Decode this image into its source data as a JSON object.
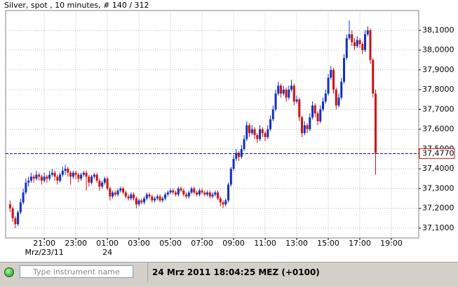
{
  "chart_data": {
    "type": "candlestick",
    "title": "Silver, spot , 10 minutes, # 140 / 312",
    "up_color": "#1030c0",
    "down_color": "#d01010",
    "grid": true,
    "xlim": [
      1113,
      2684
    ],
    "ylim": [
      37.05,
      38.2
    ],
    "xticks": [
      {
        "value": 1260,
        "label": "21:00"
      },
      {
        "value": 1380,
        "label": "23:00"
      },
      {
        "value": 1500,
        "label": "01:00"
      },
      {
        "value": 1620,
        "label": "03:00"
      },
      {
        "value": 1740,
        "label": "05:00"
      },
      {
        "value": 1860,
        "label": "07:00"
      },
      {
        "value": 1980,
        "label": "09:00"
      },
      {
        "value": 2100,
        "label": "11:00"
      },
      {
        "value": 2220,
        "label": "13:00"
      },
      {
        "value": 2340,
        "label": "15:00"
      },
      {
        "value": 2460,
        "label": "17:00"
      },
      {
        "value": 2580,
        "label": "19:00"
      }
    ],
    "date_labels": [
      {
        "value": 1260,
        "label": "Mrz/23/11"
      },
      {
        "value": 1500,
        "label": "24"
      }
    ],
    "yticks": [
      {
        "value": 37.1,
        "label": "37,1000"
      },
      {
        "value": 37.2,
        "label": "37,2000"
      },
      {
        "value": 37.3,
        "label": "37,3000"
      },
      {
        "value": 37.4,
        "label": "37,4000"
      },
      {
        "value": 37.5,
        "label": "37,5000"
      },
      {
        "value": 37.6,
        "label": "37,6000"
      },
      {
        "value": 37.7,
        "label": "37,7000"
      },
      {
        "value": 37.8,
        "label": "37,8000"
      },
      {
        "value": 37.9,
        "label": "37,9000"
      },
      {
        "value": 38.0,
        "label": "38,0000"
      },
      {
        "value": 38.1,
        "label": "38,1000"
      }
    ],
    "current_price": {
      "value": 37.477,
      "label": "37,4770",
      "color": "#000080",
      "border_color": "#d01010"
    },
    "x": [
      1130,
      1140,
      1150,
      1160,
      1170,
      1180,
      1190,
      1200,
      1210,
      1220,
      1230,
      1240,
      1250,
      1260,
      1270,
      1280,
      1290,
      1300,
      1310,
      1320,
      1330,
      1340,
      1350,
      1360,
      1370,
      1380,
      1390,
      1400,
      1410,
      1420,
      1430,
      1440,
      1450,
      1460,
      1470,
      1480,
      1490,
      1500,
      1510,
      1520,
      1530,
      1540,
      1550,
      1560,
      1570,
      1580,
      1590,
      1600,
      1610,
      1620,
      1630,
      1640,
      1650,
      1660,
      1670,
      1680,
      1690,
      1700,
      1710,
      1720,
      1730,
      1740,
      1750,
      1760,
      1770,
      1780,
      1790,
      1800,
      1810,
      1820,
      1830,
      1840,
      1850,
      1860,
      1870,
      1880,
      1890,
      1900,
      1910,
      1920,
      1930,
      1940,
      1950,
      1960,
      1970,
      1980,
      1990,
      2000,
      2010,
      2020,
      2030,
      2040,
      2050,
      2060,
      2070,
      2080,
      2090,
      2100,
      2110,
      2120,
      2130,
      2140,
      2150,
      2160,
      2170,
      2180,
      2190,
      2200,
      2210,
      2220,
      2230,
      2240,
      2250,
      2260,
      2270,
      2280,
      2290,
      2300,
      2310,
      2320,
      2330,
      2340,
      2350,
      2360,
      2370,
      2380,
      2390,
      2400,
      2410,
      2420,
      2430,
      2440,
      2450,
      2460,
      2470,
      2480,
      2490,
      2500,
      2510,
      2520
    ],
    "ohlc": [
      [
        37.22,
        37.24,
        37.18,
        37.2
      ],
      [
        37.2,
        37.21,
        37.13,
        37.15
      ],
      [
        37.15,
        37.16,
        37.1,
        37.12
      ],
      [
        37.12,
        37.19,
        37.11,
        37.18
      ],
      [
        37.18,
        37.25,
        37.17,
        37.23
      ],
      [
        37.23,
        37.3,
        37.22,
        37.28
      ],
      [
        37.28,
        37.35,
        37.27,
        37.33
      ],
      [
        37.33,
        37.36,
        37.31,
        37.34
      ],
      [
        37.34,
        37.38,
        37.33,
        37.36
      ],
      [
        37.36,
        37.37,
        37.33,
        37.35
      ],
      [
        37.35,
        37.39,
        37.34,
        37.37
      ],
      [
        37.37,
        37.38,
        37.34,
        37.36
      ],
      [
        37.36,
        37.37,
        37.32,
        37.34
      ],
      [
        37.34,
        37.38,
        37.33,
        37.36
      ],
      [
        37.36,
        37.37,
        37.33,
        37.35
      ],
      [
        37.35,
        37.39,
        37.34,
        37.37
      ],
      [
        37.37,
        37.4,
        37.36,
        37.38
      ],
      [
        37.38,
        37.39,
        37.34,
        37.36
      ],
      [
        37.36,
        37.37,
        37.32,
        37.34
      ],
      [
        37.34,
        37.38,
        37.33,
        37.37
      ],
      [
        37.37,
        37.41,
        37.36,
        37.39
      ],
      [
        37.39,
        37.42,
        37.37,
        37.4
      ],
      [
        37.4,
        37.41,
        37.36,
        37.38
      ],
      [
        37.38,
        37.39,
        37.32,
        37.36
      ],
      [
        37.36,
        37.39,
        37.35,
        37.38
      ],
      [
        37.38,
        37.39,
        37.35,
        37.37
      ],
      [
        37.37,
        37.38,
        37.33,
        37.35
      ],
      [
        37.35,
        37.38,
        37.34,
        37.37
      ],
      [
        37.37,
        37.39,
        37.36,
        37.38
      ],
      [
        37.38,
        37.39,
        37.29,
        37.36
      ],
      [
        37.36,
        37.37,
        37.31,
        37.33
      ],
      [
        37.33,
        37.37,
        37.32,
        37.36
      ],
      [
        37.36,
        37.38,
        37.35,
        37.37
      ],
      [
        37.37,
        37.38,
        37.33,
        37.34
      ],
      [
        37.34,
        37.35,
        37.29,
        37.31
      ],
      [
        37.31,
        37.34,
        37.3,
        37.33
      ],
      [
        37.33,
        37.36,
        37.32,
        37.35
      ],
      [
        37.35,
        37.36,
        37.29,
        37.3
      ],
      [
        37.3,
        37.31,
        37.24,
        37.26
      ],
      [
        37.26,
        37.29,
        37.25,
        37.28
      ],
      [
        37.28,
        37.29,
        37.26,
        37.27
      ],
      [
        37.27,
        37.3,
        37.26,
        37.29
      ],
      [
        37.29,
        37.31,
        37.28,
        37.3
      ],
      [
        37.3,
        37.31,
        37.27,
        37.28
      ],
      [
        37.28,
        37.29,
        37.25,
        37.26
      ],
      [
        37.26,
        37.27,
        37.24,
        37.25
      ],
      [
        37.25,
        37.28,
        37.24,
        37.27
      ],
      [
        37.27,
        37.28,
        37.24,
        37.25
      ],
      [
        37.25,
        37.26,
        37.2,
        37.22
      ],
      [
        37.22,
        37.25,
        37.21,
        37.24
      ],
      [
        37.24,
        37.25,
        37.22,
        37.23
      ],
      [
        37.23,
        37.26,
        37.22,
        37.25
      ],
      [
        37.25,
        37.28,
        37.24,
        37.27
      ],
      [
        37.27,
        37.28,
        37.25,
        37.26
      ],
      [
        37.26,
        37.27,
        37.23,
        37.24
      ],
      [
        37.24,
        37.26,
        37.23,
        37.25
      ],
      [
        37.25,
        37.27,
        37.24,
        37.26
      ],
      [
        37.26,
        37.27,
        37.23,
        37.24
      ],
      [
        37.24,
        37.26,
        37.23,
        37.25
      ],
      [
        37.25,
        37.28,
        37.24,
        37.27
      ],
      [
        37.27,
        37.29,
        37.26,
        37.28
      ],
      [
        37.28,
        37.3,
        37.27,
        37.29
      ],
      [
        37.29,
        37.3,
        37.27,
        37.28
      ],
      [
        37.28,
        37.29,
        37.26,
        37.27
      ],
      [
        37.27,
        37.31,
        37.26,
        37.3
      ],
      [
        37.3,
        37.31,
        37.28,
        37.29
      ],
      [
        37.29,
        37.3,
        37.26,
        37.27
      ],
      [
        37.27,
        37.28,
        37.25,
        37.26
      ],
      [
        37.26,
        37.29,
        37.25,
        37.28
      ],
      [
        37.28,
        37.31,
        37.27,
        37.3
      ],
      [
        37.3,
        37.31,
        37.27,
        37.28
      ],
      [
        37.28,
        37.29,
        37.26,
        37.27
      ],
      [
        37.27,
        37.3,
        37.26,
        37.29
      ],
      [
        37.29,
        37.3,
        37.27,
        37.28
      ],
      [
        37.28,
        37.29,
        37.26,
        37.27
      ],
      [
        37.27,
        37.29,
        37.26,
        37.28
      ],
      [
        37.28,
        37.29,
        37.25,
        37.26
      ],
      [
        37.26,
        37.28,
        37.25,
        37.27
      ],
      [
        37.27,
        37.29,
        37.26,
        37.28
      ],
      [
        37.28,
        37.29,
        37.24,
        37.25
      ],
      [
        37.25,
        37.26,
        37.21,
        37.23
      ],
      [
        37.23,
        37.24,
        37.2,
        37.22
      ],
      [
        37.22,
        37.25,
        37.21,
        37.24
      ],
      [
        37.24,
        37.33,
        37.23,
        37.32
      ],
      [
        37.32,
        37.41,
        37.31,
        37.4
      ],
      [
        37.4,
        37.47,
        37.39,
        37.45
      ],
      [
        37.45,
        37.5,
        37.44,
        37.48
      ],
      [
        37.48,
        37.49,
        37.44,
        37.46
      ],
      [
        37.46,
        37.52,
        37.45,
        37.5
      ],
      [
        37.5,
        37.57,
        37.49,
        37.55
      ],
      [
        37.55,
        37.64,
        37.54,
        37.62
      ],
      [
        37.62,
        37.63,
        37.56,
        37.58
      ],
      [
        37.58,
        37.62,
        37.57,
        37.6
      ],
      [
        37.6,
        37.61,
        37.55,
        37.57
      ],
      [
        37.57,
        37.58,
        37.53,
        37.55
      ],
      [
        37.55,
        37.62,
        37.54,
        37.6
      ],
      [
        37.6,
        37.61,
        37.56,
        37.58
      ],
      [
        37.58,
        37.59,
        37.54,
        37.56
      ],
      [
        37.56,
        37.62,
        37.55,
        37.6
      ],
      [
        37.6,
        37.67,
        37.59,
        37.65
      ],
      [
        37.65,
        37.72,
        37.64,
        37.7
      ],
      [
        37.7,
        37.8,
        37.69,
        37.78
      ],
      [
        37.78,
        37.84,
        37.77,
        37.82
      ],
      [
        37.82,
        37.83,
        37.76,
        37.78
      ],
      [
        37.78,
        37.82,
        37.77,
        37.8
      ],
      [
        37.8,
        37.81,
        37.74,
        37.76
      ],
      [
        37.76,
        37.82,
        37.75,
        37.8
      ],
      [
        37.8,
        37.85,
        37.79,
        37.82
      ],
      [
        37.82,
        37.83,
        37.72,
        37.74
      ],
      [
        37.74,
        37.77,
        37.73,
        37.75
      ],
      [
        37.75,
        37.76,
        37.64,
        37.66
      ],
      [
        37.66,
        37.67,
        37.56,
        37.58
      ],
      [
        37.58,
        37.64,
        37.57,
        37.62
      ],
      [
        37.62,
        37.63,
        37.58,
        37.6
      ],
      [
        37.6,
        37.68,
        37.59,
        37.66
      ],
      [
        37.66,
        37.74,
        37.65,
        37.72
      ],
      [
        37.72,
        37.73,
        37.66,
        37.68
      ],
      [
        37.68,
        37.69,
        37.62,
        37.64
      ],
      [
        37.64,
        37.72,
        37.63,
        37.7
      ],
      [
        37.7,
        37.76,
        37.69,
        37.74
      ],
      [
        37.74,
        37.8,
        37.73,
        37.78
      ],
      [
        37.78,
        37.88,
        37.77,
        37.86
      ],
      [
        37.86,
        37.92,
        37.85,
        37.9
      ],
      [
        37.9,
        37.91,
        37.78,
        37.8
      ],
      [
        37.8,
        37.81,
        37.7,
        37.72
      ],
      [
        37.72,
        37.78,
        37.71,
        37.76
      ],
      [
        37.76,
        37.86,
        37.75,
        37.84
      ],
      [
        37.84,
        37.98,
        37.83,
        37.96
      ],
      [
        37.96,
        38.08,
        37.95,
        38.06
      ],
      [
        38.06,
        38.15,
        38.05,
        38.08
      ],
      [
        38.08,
        38.1,
        38.02,
        38.04
      ],
      [
        38.04,
        38.06,
        38.0,
        38.02
      ],
      [
        38.02,
        38.07,
        38.01,
        38.05
      ],
      [
        38.05,
        38.06,
        38.01,
        38.03
      ],
      [
        38.03,
        38.04,
        37.98,
        38.0
      ],
      [
        38.0,
        38.1,
        37.99,
        38.08
      ],
      [
        38.08,
        38.12,
        38.07,
        38.1
      ],
      [
        38.1,
        38.11,
        37.93,
        37.95
      ],
      [
        37.95,
        37.96,
        37.76,
        37.78
      ],
      [
        37.78,
        37.8,
        37.37,
        37.48
      ]
    ]
  },
  "status_bar": {
    "search_placeholder": "Type instrument name",
    "datetime": "24 Mrz 2011 18:04:25  MEZ (+0100)"
  }
}
